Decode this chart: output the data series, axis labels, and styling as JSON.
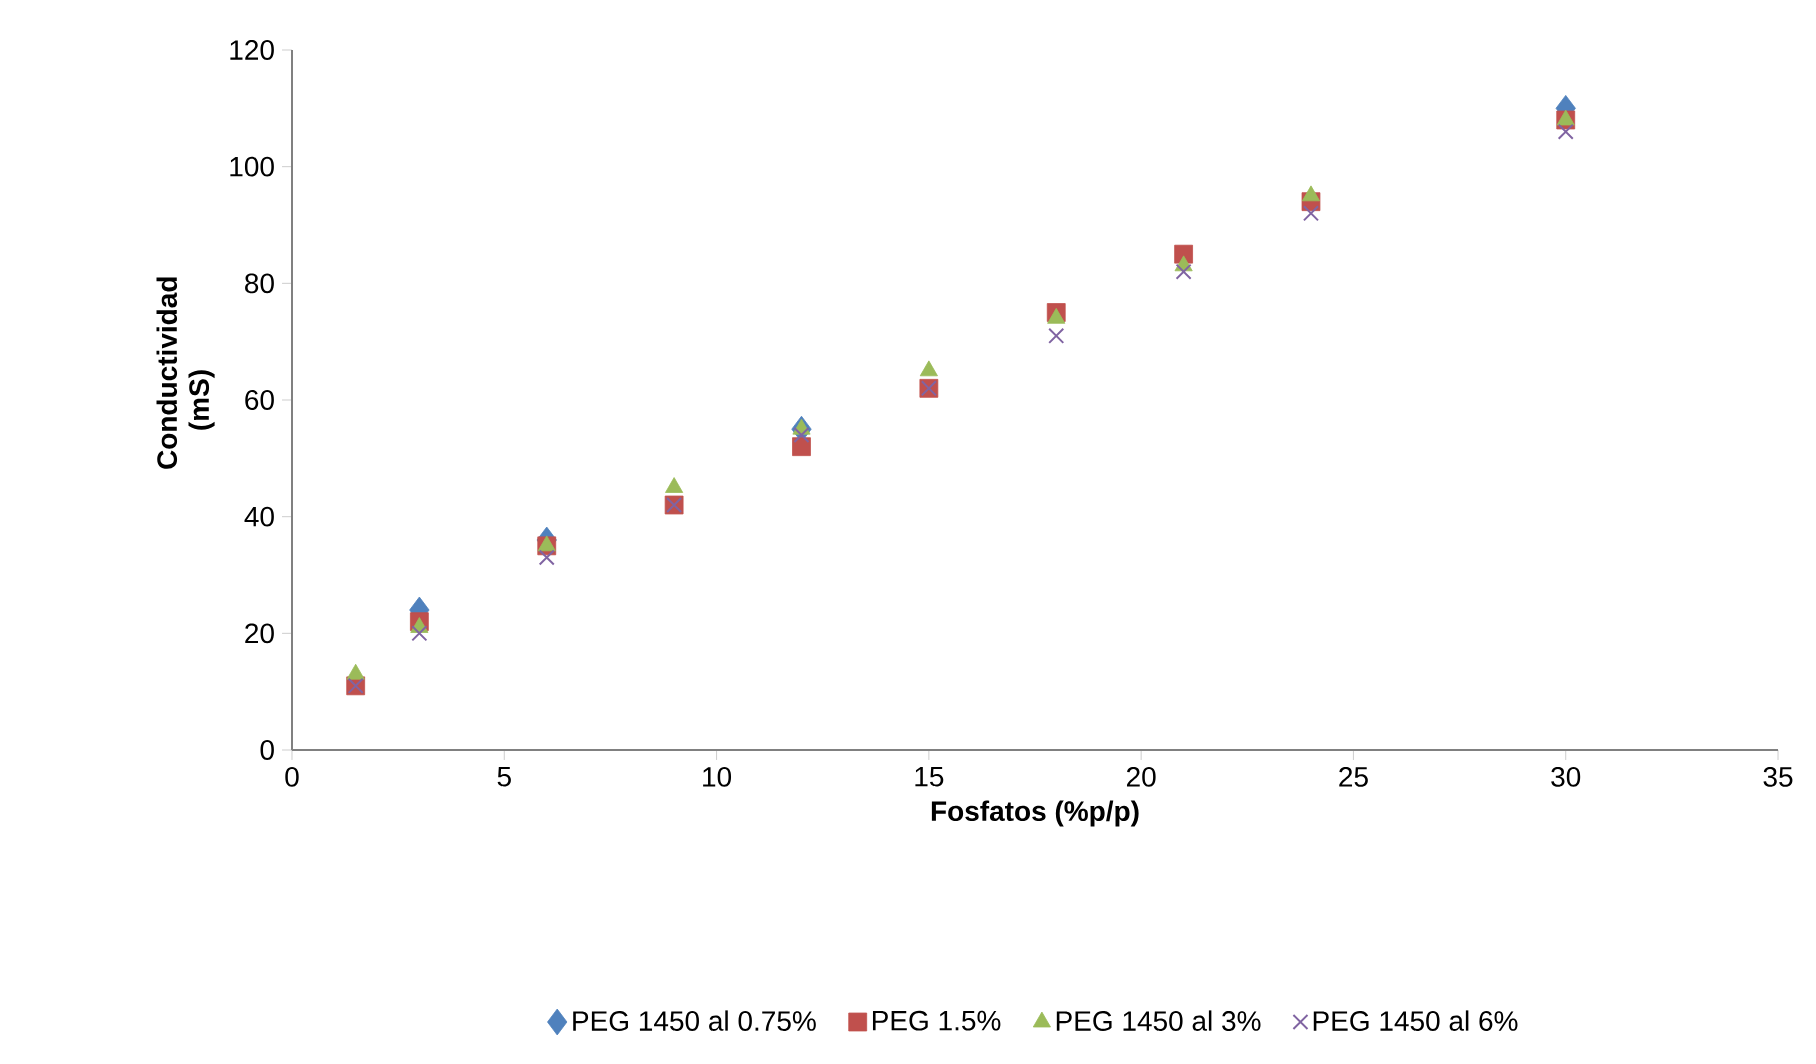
{
  "chart_data": {
    "type": "scatter",
    "xlabel": "Fosfatos (%p/p)",
    "ylabel": "Conductividad (mS)",
    "x": [
      1.5,
      3,
      6,
      9,
      12,
      15,
      18,
      21,
      24,
      30
    ],
    "xlim": [
      0,
      35
    ],
    "xticks": [
      0,
      5,
      10,
      15,
      20,
      25,
      30,
      35
    ],
    "ylim": [
      0,
      120
    ],
    "yticks": [
      0,
      20,
      40,
      60,
      80,
      100,
      120
    ],
    "grid": false,
    "legend": "bottom",
    "series": [
      {
        "name": "PEG 1450 al 0.75%",
        "color": "#4f81bd",
        "marker": "diamond",
        "values": [
          null,
          24,
          36,
          null,
          55,
          null,
          null,
          null,
          null,
          110
        ]
      },
      {
        "name": "PEG 1.5%",
        "color": "#c0504d",
        "marker": "square",
        "values": [
          11,
          22,
          35,
          42,
          52,
          62,
          75,
          85,
          94,
          108
        ]
      },
      {
        "name": "PEG 1450 al 3%",
        "color": "#9bbb59",
        "marker": "triangle",
        "values": [
          13,
          21,
          35,
          45,
          55,
          65,
          74,
          83,
          95,
          108
        ]
      },
      {
        "name": "PEG 1450 al 6%",
        "color": "#8064a2",
        "marker": "cross",
        "values": [
          11,
          20,
          33,
          42,
          54,
          62,
          71,
          82,
          92,
          106
        ]
      }
    ]
  }
}
